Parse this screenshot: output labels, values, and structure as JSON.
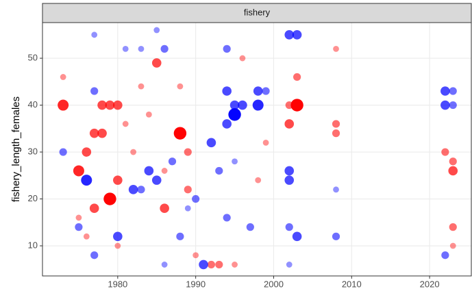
{
  "chart_data": {
    "type": "scatter",
    "facet_label": "fishery",
    "ylabel": "fishery_length_females",
    "xlim": [
      1970.35,
      2025.35
    ],
    "ylim": [
      3.58,
      57.6
    ],
    "xticks": [
      1980,
      1990,
      2000,
      2010,
      2020
    ],
    "yticks": [
      10,
      20,
      30,
      40,
      50
    ],
    "grid": true,
    "series": [
      {
        "color": "#ff0000",
        "x": [
          1973,
          1975,
          1976,
          1977,
          1977,
          1978,
          1979,
          1979,
          1980,
          1978,
          1980,
          1988,
          1986,
          1985,
          1989,
          1993,
          2003,
          2002,
          2003,
          2008,
          2008,
          2023,
          2023,
          2022,
          2023,
          2023,
          1992,
          1984,
          1981,
          1976,
          1995,
          2002,
          1973,
          2008,
          1983,
          1988,
          1999,
          1989,
          1986,
          1982,
          1975,
          1980,
          1996,
          1990,
          1998
        ],
        "values": [
          40,
          26,
          30,
          18,
          34,
          40,
          20,
          40,
          40,
          34,
          24,
          34,
          18,
          49,
          30,
          6,
          40,
          36,
          46,
          36,
          34,
          26,
          28,
          30,
          14,
          10,
          6,
          38,
          36,
          12,
          6,
          40,
          46,
          52,
          44,
          44,
          32,
          22,
          26,
          30,
          16,
          10,
          50,
          8,
          24
        ],
        "sizes": [
          2.5,
          2.5,
          2,
          2,
          2,
          2,
          3,
          2,
          2,
          2,
          2,
          3,
          2,
          2,
          1.5,
          1.5,
          3,
          2,
          1.5,
          1.5,
          1.5,
          2,
          1.5,
          1.5,
          1.5,
          1,
          1.5,
          1,
          1,
          1,
          1,
          1.5,
          1,
          1,
          1,
          1,
          1,
          1.5,
          1,
          1,
          1,
          1,
          1,
          1,
          1
        ]
      },
      {
        "color": "#0000ff",
        "x": [
          1973,
          1976,
          1977,
          1975,
          1977,
          1980,
          1982,
          1983,
          1984,
          1985,
          1986,
          1987,
          1988,
          1991,
          1992,
          1993,
          1994,
          1994,
          1995,
          1995,
          1996,
          1998,
          1998,
          1999,
          2002,
          2003,
          2002,
          2002,
          2003,
          2002,
          2008,
          2008,
          2022,
          2023,
          2022,
          2023,
          2022,
          1994,
          1997,
          1985,
          1977,
          1994,
          1983,
          1990,
          1986,
          2002,
          1981,
          1989,
          1995
        ],
        "values": [
          30,
          24,
          43,
          14,
          8,
          12,
          22,
          22,
          26,
          24,
          52,
          28,
          12,
          6,
          32,
          26,
          43,
          36,
          38,
          40,
          40,
          40,
          43,
          43,
          55,
          55,
          26,
          24,
          12,
          14,
          12,
          22,
          43,
          43,
          40,
          40,
          8,
          16,
          14,
          56,
          55,
          52,
          52,
          20,
          6,
          6,
          52,
          18,
          28
        ],
        "sizes": [
          1.5,
          2.5,
          1.5,
          1.5,
          1.5,
          2,
          2,
          1.5,
          2,
          2,
          1.5,
          1.5,
          1.5,
          2,
          2,
          1.5,
          2,
          2,
          3,
          2,
          2,
          2.5,
          2,
          1.5,
          2,
          2,
          2,
          2,
          2,
          1.5,
          1.5,
          1,
          2,
          1.5,
          2,
          1.5,
          1.5,
          1.5,
          1.5,
          1,
          1,
          1.5,
          1,
          1.5,
          1,
          1,
          1,
          1,
          1
        ]
      }
    ]
  }
}
